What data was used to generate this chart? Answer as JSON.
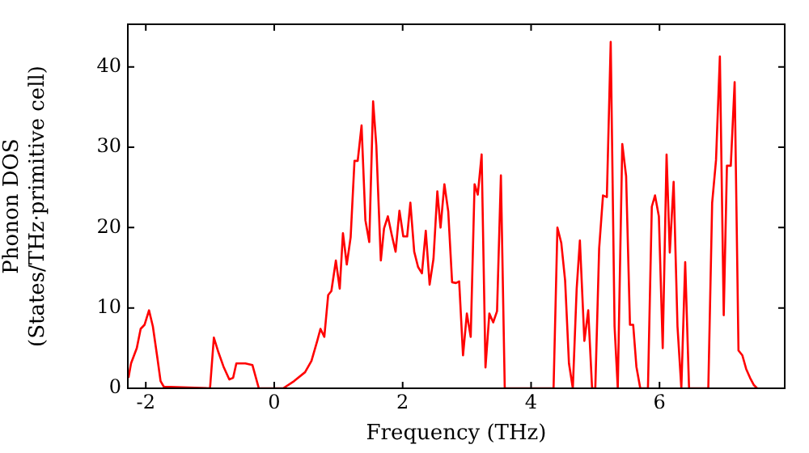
{
  "chart_data": {
    "type": "line",
    "xlabel": "Frequency (THz)",
    "ylabel": "Phonon DOS\n(States/THz·primitive cell)",
    "xlim": [
      -2.28,
      7.95
    ],
    "ylim": [
      0,
      45.3
    ],
    "xticks": [
      -2,
      0,
      2,
      4,
      6
    ],
    "yticks": [
      0,
      10,
      20,
      30,
      40
    ],
    "marker": "none",
    "line_style": "solid",
    "series": [
      {
        "color": "#ff0000",
        "x": [
          -2.27,
          -2.23,
          -2.14,
          -2.08,
          -2.02,
          -1.95,
          -1.89,
          -1.82,
          -1.77,
          -1.72,
          -1.0,
          -0.94,
          -0.87,
          -0.79,
          -0.7,
          -0.64,
          -0.59,
          -0.45,
          -0.34,
          -0.24,
          0.14,
          0.31,
          0.48,
          0.58,
          0.67,
          0.72,
          0.78,
          0.84,
          0.89,
          0.96,
          1.02,
          1.07,
          1.13,
          1.19,
          1.25,
          1.3,
          1.36,
          1.42,
          1.48,
          1.54,
          1.59,
          1.66,
          1.71,
          1.77,
          1.83,
          1.89,
          1.95,
          2.01,
          2.07,
          2.12,
          2.18,
          2.24,
          2.3,
          2.36,
          2.42,
          2.48,
          2.54,
          2.59,
          2.65,
          2.71,
          2.77,
          2.83,
          2.88,
          2.94,
          3.0,
          3.06,
          3.12,
          3.17,
          3.23,
          3.29,
          3.35,
          3.41,
          3.47,
          3.53,
          3.59,
          4.35,
          4.41,
          4.47,
          4.53,
          4.59,
          4.65,
          4.71,
          4.76,
          4.83,
          4.89,
          4.95,
          5.0,
          5.06,
          5.12,
          5.18,
          5.24,
          5.3,
          5.35,
          5.42,
          5.48,
          5.54,
          5.59,
          5.64,
          5.7,
          5.82,
          5.88,
          5.93,
          5.99,
          6.05,
          6.11,
          6.16,
          6.22,
          6.28,
          6.34,
          6.4,
          6.46,
          6.76,
          6.82,
          6.88,
          6.94,
          7.0,
          7.05,
          7.11,
          7.17,
          7.23,
          7.29,
          7.35,
          7.41,
          7.47,
          7.52
        ],
        "values": [
          1.3,
          3.1,
          5.0,
          7.4,
          7.9,
          9.7,
          7.7,
          3.8,
          0.9,
          0.2,
          0,
          6.3,
          4.5,
          2.7,
          1.1,
          1.3,
          3.1,
          3.1,
          2.9,
          0,
          0,
          0.9,
          2.0,
          3.4,
          5.9,
          7.4,
          6.4,
          11.6,
          12.1,
          15.9,
          12.4,
          19.3,
          15.4,
          18.8,
          28.3,
          28.3,
          32.7,
          20.9,
          18.2,
          35.7,
          30.2,
          15.9,
          19.9,
          21.4,
          19.1,
          17.0,
          22.1,
          18.9,
          18.9,
          23.1,
          17.0,
          15.1,
          14.3,
          19.6,
          12.9,
          16.1,
          24.5,
          20.0,
          25.4,
          22.0,
          13.2,
          13.1,
          13.3,
          4.1,
          9.3,
          6.4,
          25.4,
          24.1,
          29.1,
          2.6,
          9.3,
          8.2,
          9.6,
          26.5,
          0,
          0,
          20.0,
          18.1,
          13.4,
          3.1,
          0,
          12.4,
          18.4,
          5.9,
          9.7,
          0,
          0,
          17.4,
          24.0,
          23.8,
          43.1,
          7.7,
          0,
          30.4,
          26.4,
          7.9,
          7.9,
          2.7,
          0,
          0,
          22.6,
          24.0,
          21.4,
          5.0,
          29.1,
          16.9,
          25.7,
          7.7,
          0,
          15.7,
          0,
          0,
          23.1,
          28.4,
          41.3,
          9.1,
          27.7,
          27.7,
          38.1,
          4.7,
          4.1,
          2.4,
          1.3,
          0.4,
          0
        ]
      }
    ]
  }
}
